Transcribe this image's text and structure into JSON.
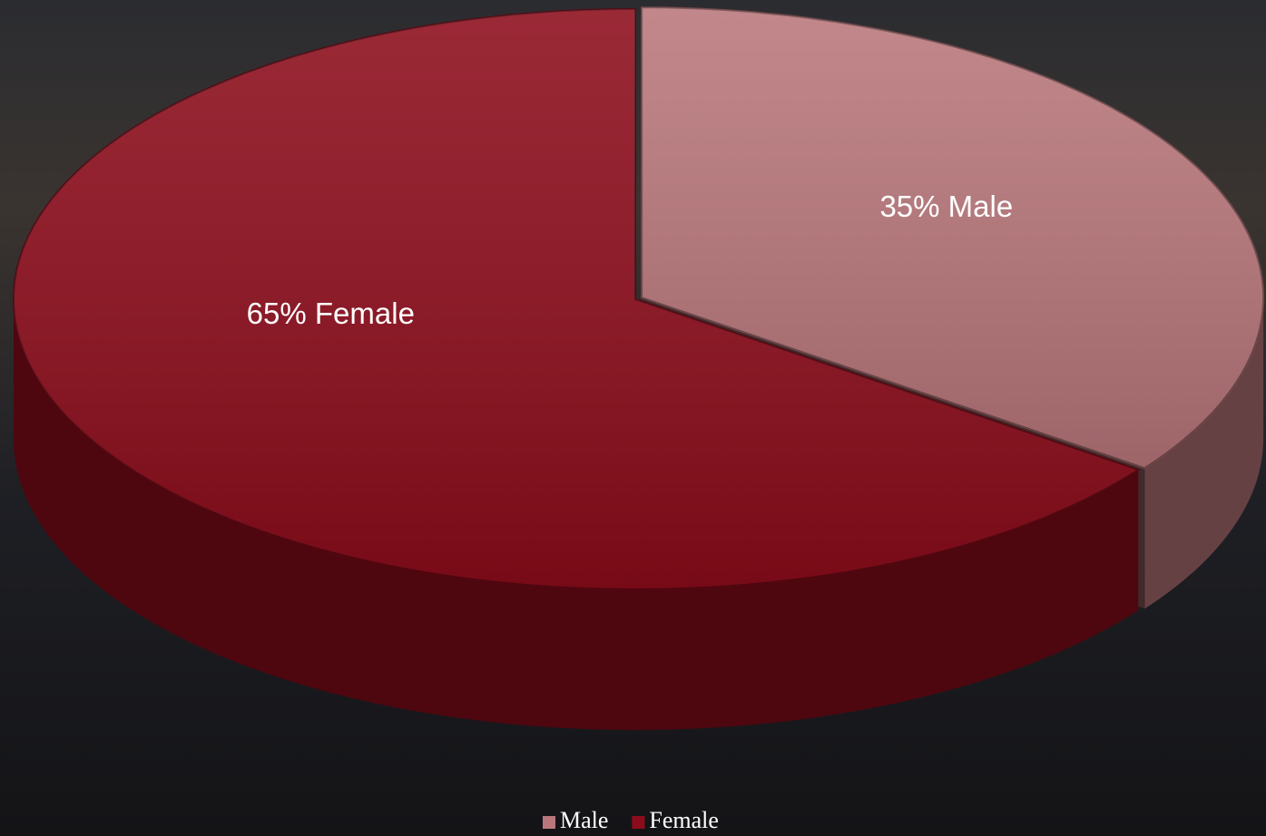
{
  "chart_data": {
    "type": "pie3d",
    "categories": [
      "Male",
      "Female"
    ],
    "values": [
      35,
      65
    ],
    "value_labels": [
      "35% Male",
      "65% Female"
    ],
    "colors": [
      "#b9777b",
      "#8d0c1b"
    ],
    "legend": "bottom"
  }
}
